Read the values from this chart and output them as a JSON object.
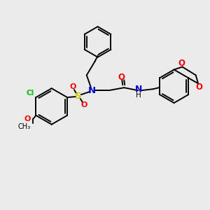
{
  "bg_color": "#ebebeb",
  "bond_color": "#000000",
  "atom_colors": {
    "N": "#0000cc",
    "O": "#ff0000",
    "S": "#cccc00",
    "Cl": "#00bb00",
    "C": "#000000"
  },
  "figsize": [
    3.0,
    3.0
  ],
  "dpi": 100
}
